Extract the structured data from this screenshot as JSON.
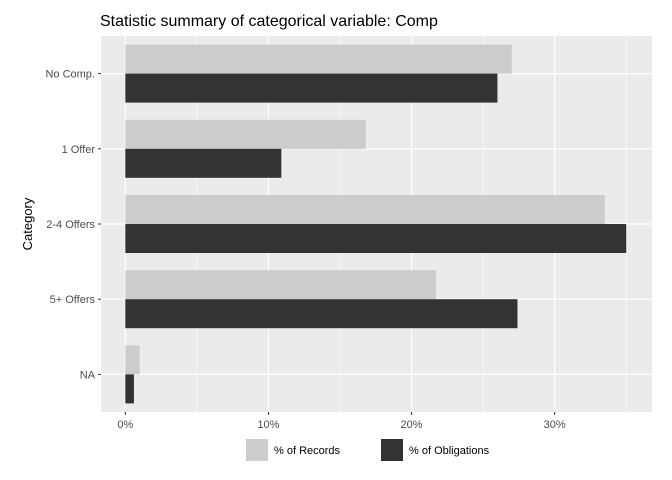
{
  "chart_data": {
    "type": "bar",
    "orientation": "horizontal",
    "title": "Statistic summary of categorical variable:  Comp",
    "xlabel": "",
    "ylabel": "Category",
    "categories": [
      "No Comp.",
      "1 Offer",
      "2-4 Offers",
      "5+ Offers",
      "NA"
    ],
    "series": [
      {
        "name": "% of Records",
        "color": "#cccccc",
        "values": [
          27.0,
          16.8,
          33.5,
          21.7,
          1.0
        ]
      },
      {
        "name": "% of Obligations",
        "color": "#333333",
        "values": [
          26.0,
          10.9,
          35.0,
          27.4,
          0.6
        ]
      }
    ],
    "xlim": [
      -1.7,
      36.8
    ],
    "xticks": [
      0,
      10,
      20,
      30
    ],
    "xtick_labels": [
      "0%",
      "10%",
      "20%",
      "30%"
    ],
    "grid": true,
    "legend_position": "bottom",
    "panel_color": "#ebebeb",
    "grid_color": "#ffffff"
  }
}
